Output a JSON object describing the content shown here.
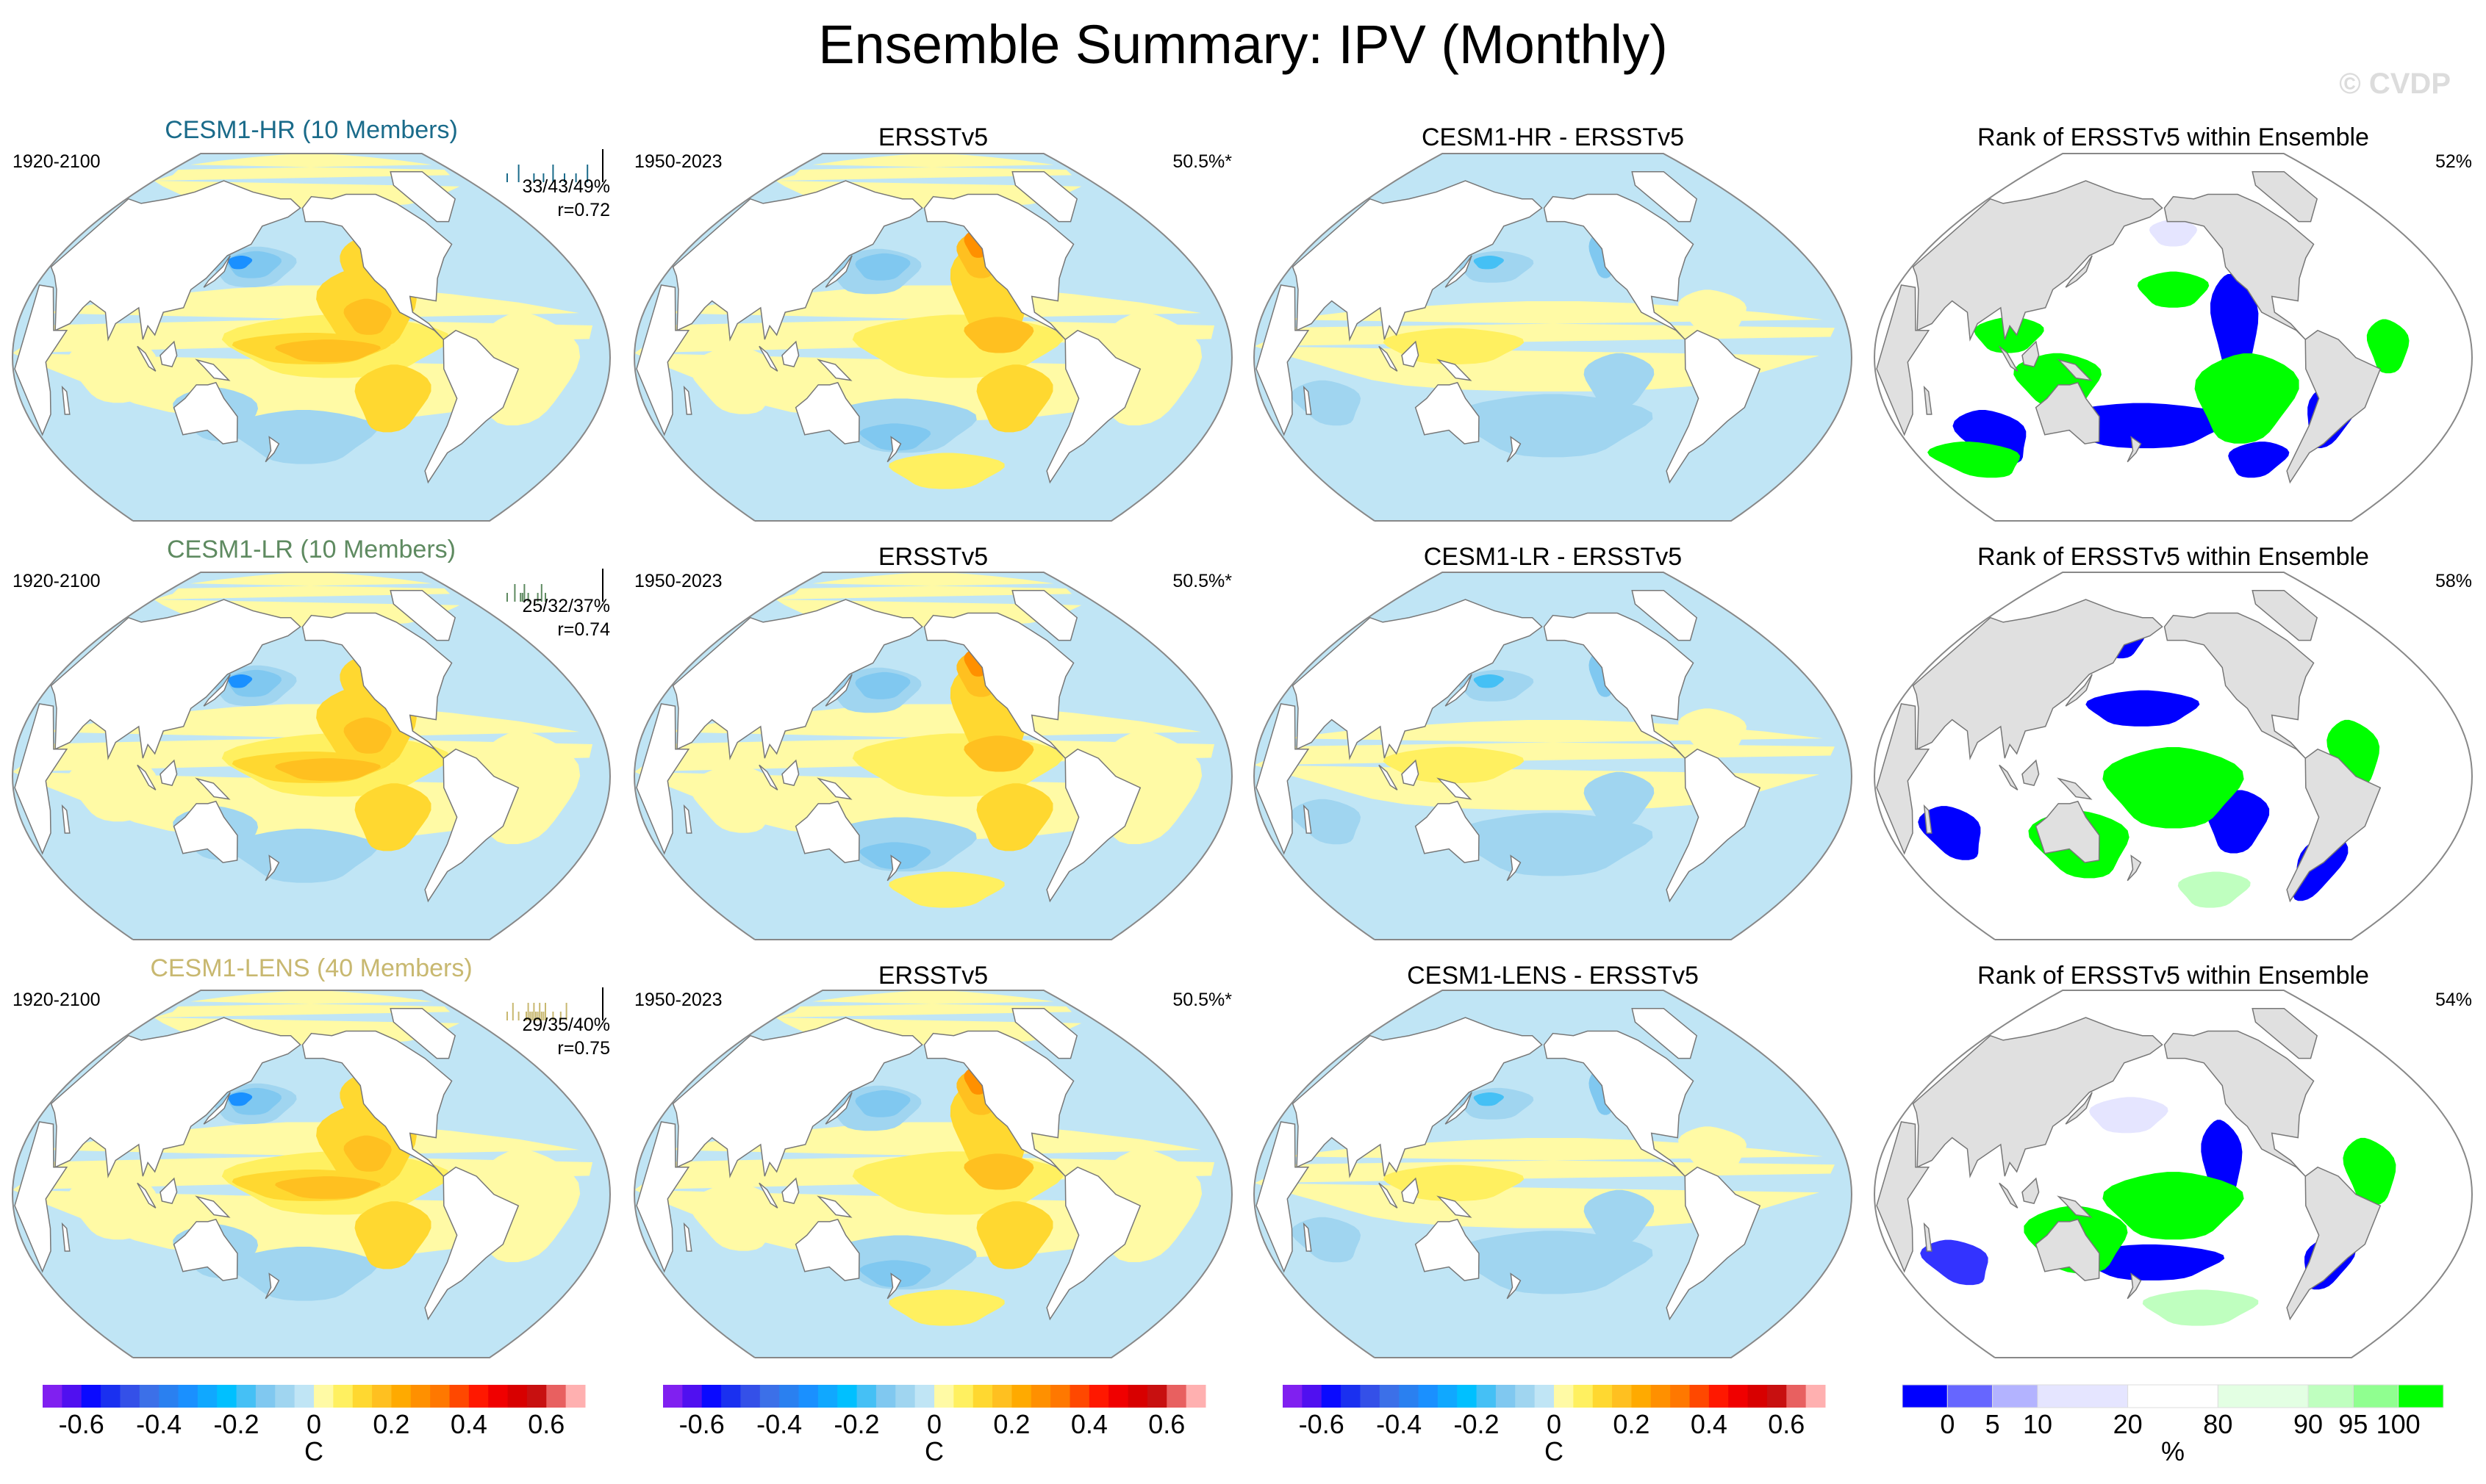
{
  "title": "Ensemble Summary: IPV (Monthly)",
  "watermark": "© CVDP",
  "rows": [
    {
      "model": "CESM1-HR (10 Members)",
      "model_color": "#1a6b8a",
      "model_period": "1920-2100",
      "model_stats": "33/43/49%",
      "model_r": "r=0.72",
      "obs_title": "ERSSTv5",
      "obs_period": "1950-2023",
      "obs_pct": "50.5%*",
      "diff_title": "CESM1-HR - ERSSTv5",
      "rank_title": "Rank of ERSSTv5 within Ensemble",
      "rank_pct": "52%"
    },
    {
      "model": "CESM1-LR (10 Members)",
      "model_color": "#5e8a60",
      "model_period": "1920-2100",
      "model_stats": "25/32/37%",
      "model_r": "r=0.74",
      "obs_title": "ERSSTv5",
      "obs_period": "1950-2023",
      "obs_pct": "50.5%*",
      "diff_title": "CESM1-LR - ERSSTv5",
      "rank_title": "Rank of ERSSTv5 within Ensemble",
      "rank_pct": "58%"
    },
    {
      "model": "CESM1-LENS (40 Members)",
      "model_color": "#c8b870",
      "model_period": "1920-2100",
      "model_stats": "29/35/40%",
      "model_r": "r=0.75",
      "obs_title": "ERSSTv5",
      "obs_period": "1950-2023",
      "obs_pct": "50.5%*",
      "diff_title": "CESM1-LENS - ERSSTv5",
      "rank_title": "Rank of ERSSTv5 within Ensemble",
      "rank_pct": "54%"
    }
  ],
  "anomaly_colorbar": {
    "unit": "C",
    "range": [
      -0.7,
      0.7
    ],
    "ticks": [
      "-0.6",
      "-0.4",
      "-0.2",
      "0",
      "0.2",
      "0.4",
      "0.6"
    ],
    "colors": [
      "#8020f0",
      "#5010f0",
      "#0a0aff",
      "#1a30f0",
      "#3450e8",
      "#3c70e8",
      "#2a80f0",
      "#1a90ff",
      "#10a8ff",
      "#00c0ff",
      "#45c0f5",
      "#80c8f0",
      "#a0d5f0",
      "#c0e5f5",
      "#fffaa5",
      "#fff060",
      "#ffd830",
      "#ffc020",
      "#ffaa00",
      "#ff9000",
      "#ff7800",
      "#ff4800",
      "#ff1800",
      "#f00000",
      "#d80000",
      "#c81010",
      "#e86060",
      "#ffb0b0"
    ]
  },
  "rank_colorbar": {
    "unit": "%",
    "ticks": [
      "0",
      "5",
      "10",
      "20",
      "80",
      "90",
      "95",
      "100"
    ],
    "colors": [
      "#0000ff",
      "#6666ff",
      "#b3b3ff",
      "#e5e5ff",
      "#ffffff",
      "#e3ffe3",
      "#bfffbf",
      "#90ff90",
      "#00ff00"
    ]
  }
}
